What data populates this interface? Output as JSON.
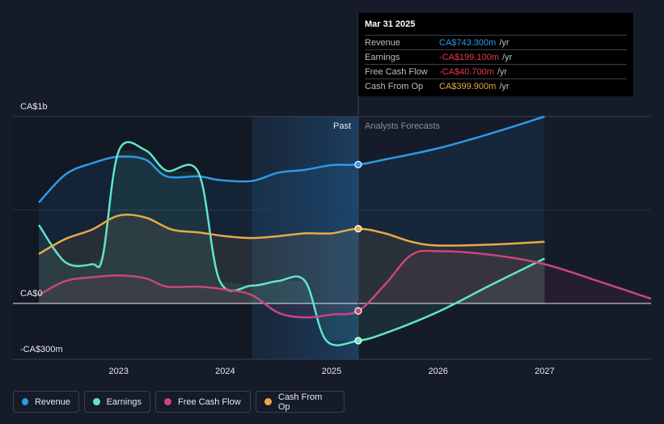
{
  "tooltip": {
    "date": "Mar 31 2025",
    "rows": [
      {
        "label": "Revenue",
        "value": "CA$743.300m",
        "unit": "/yr",
        "color": "#2d9ae6"
      },
      {
        "label": "Earnings",
        "value": "-CA$199.100m",
        "unit": "/yr",
        "color": "#e8384f"
      },
      {
        "label": "Free Cash Flow",
        "value": "-CA$40.700m",
        "unit": "/yr",
        "color": "#e8384f"
      },
      {
        "label": "Cash From Op",
        "value": "CA$399.900m",
        "unit": "/yr",
        "color": "#e8a84a"
      }
    ]
  },
  "regions": {
    "past": "Past",
    "forecast": "Analysts Forecasts"
  },
  "legend": [
    {
      "label": "Revenue",
      "color": "#2d9ae6"
    },
    {
      "label": "Earnings",
      "color": "#5ee6c8"
    },
    {
      "label": "Free Cash Flow",
      "color": "#c8467e"
    },
    {
      "label": "Cash From Op",
      "color": "#e8a84a"
    }
  ],
  "chart_data": {
    "type": "line",
    "y_tick_labels": [
      "CA$1b",
      "CA$0",
      "-CA$300m"
    ],
    "ylim": [
      -300,
      1000
    ],
    "xlim": [
      2022.25,
      2028.0
    ],
    "x_ticks": [
      2023,
      2024,
      2025,
      2026,
      2027
    ],
    "x_tick_labels": [
      "2023",
      "2024",
      "2025",
      "2026",
      "2027"
    ],
    "past_end": 2025.25,
    "series": [
      {
        "name": "Revenue",
        "color": "#2d9ae6",
        "x": [
          2022.25,
          2022.5,
          2022.75,
          2023.0,
          2023.25,
          2023.45,
          2023.75,
          2023.95,
          2024.25,
          2024.5,
          2024.75,
          2025.0,
          2025.25,
          2025.5,
          2026.0,
          2026.5,
          2027.0
        ],
        "y": [
          540,
          690,
          750,
          785,
          770,
          680,
          680,
          660,
          655,
          700,
          715,
          740,
          743,
          770,
          830,
          910,
          1000
        ]
      },
      {
        "name": "Earnings",
        "color": "#5ee6c8",
        "x": [
          2022.25,
          2022.5,
          2022.75,
          2022.85,
          2023.0,
          2023.25,
          2023.45,
          2023.75,
          2023.95,
          2024.25,
          2024.5,
          2024.75,
          2024.95,
          2025.25,
          2025.5,
          2026.0,
          2026.5,
          2027.0
        ],
        "y": [
          420,
          220,
          210,
          250,
          815,
          820,
          710,
          700,
          120,
          95,
          120,
          120,
          -199,
          -199,
          -160,
          -45,
          100,
          240
        ]
      },
      {
        "name": "Free Cash Flow",
        "color": "#c8467e",
        "x": [
          2022.25,
          2022.5,
          2022.75,
          2023.0,
          2023.25,
          2023.45,
          2023.75,
          2024.0,
          2024.25,
          2024.5,
          2024.75,
          2025.0,
          2025.25,
          2025.5,
          2025.75,
          2026.0,
          2026.5,
          2027.0,
          2027.5,
          2028.0
        ],
        "y": [
          45,
          120,
          140,
          150,
          135,
          90,
          90,
          75,
          45,
          -50,
          -75,
          -60,
          -40,
          100,
          260,
          280,
          260,
          210,
          120,
          25
        ]
      },
      {
        "name": "Cash From Op",
        "color": "#e8a84a",
        "x": [
          2022.25,
          2022.5,
          2022.75,
          2023.0,
          2023.25,
          2023.5,
          2023.75,
          2024.0,
          2024.25,
          2024.5,
          2024.75,
          2025.0,
          2025.25,
          2025.5,
          2025.75,
          2026.0,
          2026.5,
          2027.0
        ],
        "y": [
          265,
          345,
          395,
          470,
          460,
          395,
          380,
          360,
          350,
          360,
          375,
          375,
          400,
          375,
          330,
          310,
          315,
          330
        ]
      }
    ]
  }
}
